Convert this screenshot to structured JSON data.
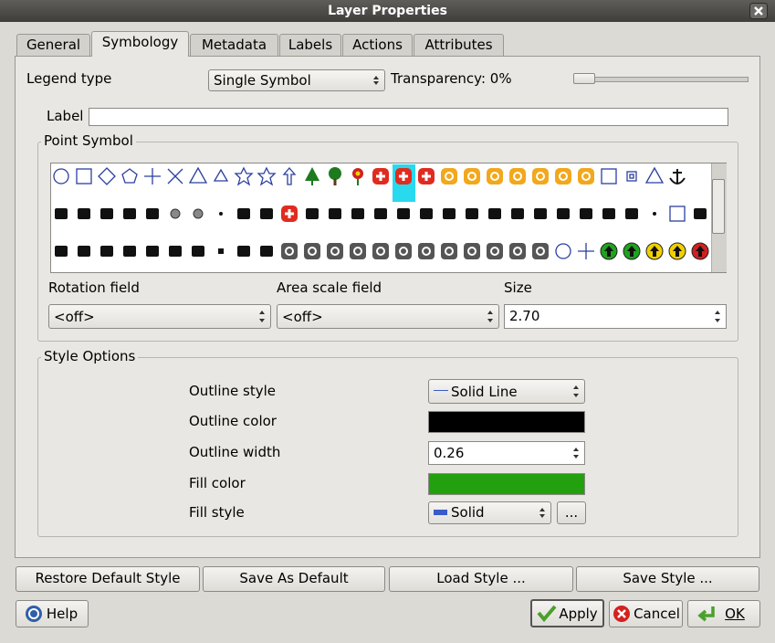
{
  "window": {
    "title": "Layer Properties"
  },
  "tabs": [
    "General",
    "Symbology",
    "Metadata",
    "Labels",
    "Actions",
    "Attributes"
  ],
  "active_tab": 1,
  "legend_type": {
    "label": "Legend type",
    "value": "Single Symbol"
  },
  "transparency": {
    "label": "Transparency: 0%"
  },
  "label_field": {
    "label": "Label"
  },
  "point_symbol": {
    "title": "Point Symbol",
    "rotation_field": {
      "label": "Rotation field",
      "value": "<off>"
    },
    "area_scale_field": {
      "label": "Area scale field",
      "value": "<off>"
    },
    "size": {
      "label": "Size",
      "value": "2.70"
    }
  },
  "style_options": {
    "title": "Style Options",
    "outline_style": {
      "label": "Outline style",
      "value": "Solid Line"
    },
    "outline_color": {
      "label": "Outline color",
      "color": "#000000"
    },
    "outline_width": {
      "label": "Outline width",
      "value": "0.26"
    },
    "fill_color": {
      "label": "Fill color",
      "color": "#22a00e"
    },
    "fill_style": {
      "label": "Fill style",
      "value": "Solid",
      "more": "..."
    }
  },
  "style_buttons": [
    "Restore Default Style",
    "Save As Default",
    "Load Style ...",
    "Save Style ..."
  ],
  "footer": {
    "help": "Help",
    "apply": "Apply",
    "cancel": "Cancel",
    "ok": "OK"
  }
}
